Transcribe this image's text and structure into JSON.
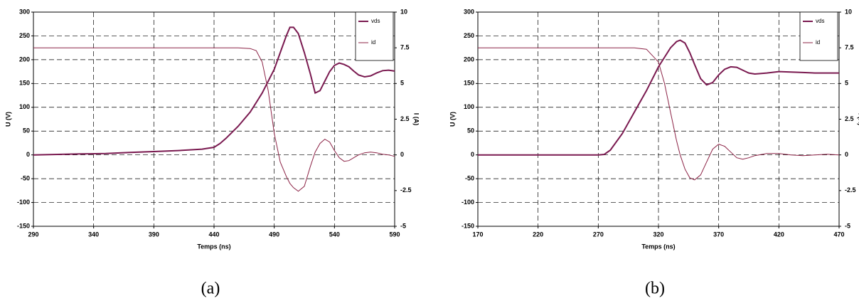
{
  "chart_data": [
    {
      "type": "line",
      "caption": "(a)",
      "xlabel": "Temps (ns)",
      "ylabel": "U (V)",
      "y2label": "I (A)",
      "xlim": [
        290,
        590
      ],
      "xticks": [
        290,
        340,
        390,
        440,
        490,
        540,
        590
      ],
      "ylim": [
        -150,
        300
      ],
      "yticks": [
        -150,
        -100,
        -50,
        0,
        50,
        100,
        150,
        200,
        250,
        300
      ],
      "y2lim": [
        -5,
        10
      ],
      "y2ticks": [
        -5,
        -2.5,
        0,
        2.5,
        5,
        7.5,
        10
      ],
      "grid": true,
      "legend": "top-right",
      "x": [
        290,
        310,
        330,
        350,
        370,
        390,
        410,
        430,
        440,
        445,
        450,
        460,
        470,
        475,
        480,
        485,
        490,
        495,
        500,
        503,
        506,
        510,
        515,
        520,
        524,
        528,
        532,
        536,
        540,
        544,
        548,
        552,
        556,
        560,
        565,
        570,
        575,
        580,
        585,
        590
      ],
      "series": [
        {
          "name": "vds",
          "color": "#7a1a50",
          "values": [
            0,
            1,
            2,
            3,
            5,
            7,
            9,
            12,
            16,
            24,
            35,
            60,
            90,
            110,
            130,
            155,
            180,
            215,
            250,
            268,
            268,
            255,
            215,
            170,
            130,
            135,
            155,
            175,
            188,
            193,
            190,
            185,
            176,
            168,
            164,
            166,
            172,
            177,
            178,
            176
          ]
        },
        {
          "name": "id",
          "color": "#8c2346",
          "axis": "y2",
          "values": [
            7.5,
            7.5,
            7.5,
            7.5,
            7.5,
            7.5,
            7.5,
            7.5,
            7.5,
            7.5,
            7.5,
            7.5,
            7.45,
            7.3,
            6.5,
            4.5,
            1.5,
            -0.5,
            -1.5,
            -2.0,
            -2.3,
            -2.55,
            -2.2,
            -0.8,
            0.2,
            0.8,
            1.1,
            0.9,
            0.3,
            -0.2,
            -0.45,
            -0.4,
            -0.2,
            0,
            0.15,
            0.2,
            0.15,
            0.05,
            0,
            -0.1
          ]
        }
      ]
    },
    {
      "type": "line",
      "caption": "(b)",
      "xlabel": "Temps (ns)",
      "ylabel": "U (V)",
      "y2label": "I (A)",
      "xlim": [
        170,
        470
      ],
      "xticks": [
        170,
        220,
        270,
        320,
        370,
        420,
        470
      ],
      "ylim": [
        -150,
        300
      ],
      "yticks": [
        -150,
        -100,
        -50,
        0,
        50,
        100,
        150,
        200,
        250,
        300
      ],
      "y2lim": [
        -5,
        10
      ],
      "y2ticks": [
        -5,
        -2.5,
        0,
        2.5,
        5,
        7.5,
        10
      ],
      "grid": true,
      "legend": "top-right",
      "x": [
        170,
        200,
        230,
        260,
        270,
        275,
        280,
        290,
        300,
        310,
        320,
        325,
        330,
        335,
        338,
        342,
        346,
        350,
        355,
        360,
        365,
        370,
        375,
        380,
        385,
        390,
        395,
        400,
        410,
        420,
        430,
        440,
        450,
        460,
        470
      ],
      "series": [
        {
          "name": "vds",
          "color": "#7a1a50",
          "values": [
            0,
            0,
            0,
            0,
            0,
            1,
            10,
            45,
            90,
            135,
            185,
            205,
            225,
            238,
            241,
            235,
            215,
            190,
            160,
            147,
            152,
            168,
            180,
            185,
            184,
            178,
            172,
            170,
            172,
            175,
            174,
            173,
            172,
            172,
            172
          ]
        },
        {
          "name": "id",
          "color": "#8c2346",
          "axis": "y2",
          "values": [
            7.5,
            7.5,
            7.5,
            7.5,
            7.5,
            7.5,
            7.5,
            7.5,
            7.5,
            7.4,
            6.5,
            5.0,
            3.0,
            1.0,
            0,
            -1.0,
            -1.6,
            -1.75,
            -1.4,
            -0.5,
            0.4,
            0.75,
            0.6,
            0.2,
            -0.2,
            -0.3,
            -0.2,
            -0.05,
            0.1,
            0.1,
            0,
            -0.05,
            0,
            0.05,
            0
          ]
        }
      ]
    }
  ]
}
